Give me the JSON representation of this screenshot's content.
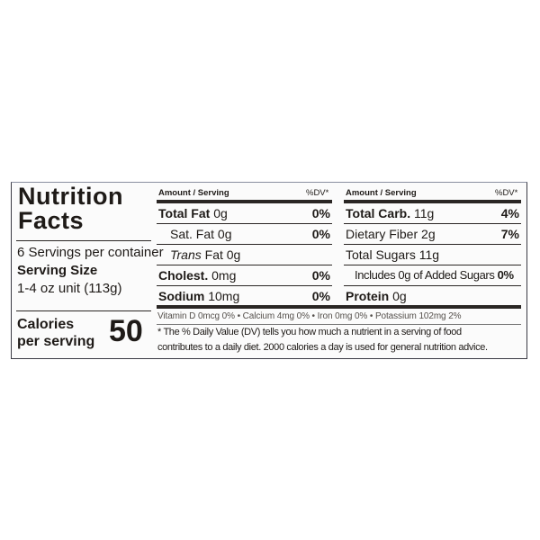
{
  "title_line1": "Nutrition",
  "title_line2": "Facts",
  "servings_per_container": "6 Servings per container",
  "serving_size_label": "Serving Size",
  "serving_size_value": "1-4 oz unit (113g)",
  "calories_label_line1": "Calories",
  "calories_label_line2": "per serving",
  "calories_value": "50",
  "left_table": {
    "header_amount": "Amount / Serving",
    "header_dv": "%DV*",
    "rows": [
      {
        "name": "Total Fat",
        "amount": "0g",
        "dv": "0%"
      },
      {
        "name": "Sat. Fat",
        "amount": "0g",
        "dv": "0%"
      },
      {
        "name": "Trans",
        "amount": "Fat 0g",
        "dv": ""
      },
      {
        "name": "Cholest.",
        "amount": "0mg",
        "dv": "0%"
      },
      {
        "name": "Sodium",
        "amount": "10mg",
        "dv": "0%"
      }
    ]
  },
  "right_table": {
    "header_amount": "Amount / Serving",
    "header_dv": "%DV*",
    "rows": [
      {
        "name": "Total Carb.",
        "amount": "11g",
        "dv": "4%"
      },
      {
        "name": "Dietary Fiber",
        "amount": "2g",
        "dv": "7%"
      },
      {
        "name": "Total Sugars",
        "amount": "11g",
        "dv": ""
      },
      {
        "name": "Includes 0g of Added Sugars",
        "amount": "",
        "dv": "0%"
      },
      {
        "name": "Protein",
        "amount": "0g",
        "dv": ""
      }
    ]
  },
  "vitamins_line": "Vitamin D 0mcg  0%  •  Calcium 4mg  0%  •  Iron 0mg 0%  •  Potassium 102mg  2%",
  "footnote_line1": "* The % Daily Value (DV) tells you how much a nutrient in a serving of  food",
  "footnote_line2": "contributes to a daily diet. 2000 calories a day is used for general nutrition advice."
}
